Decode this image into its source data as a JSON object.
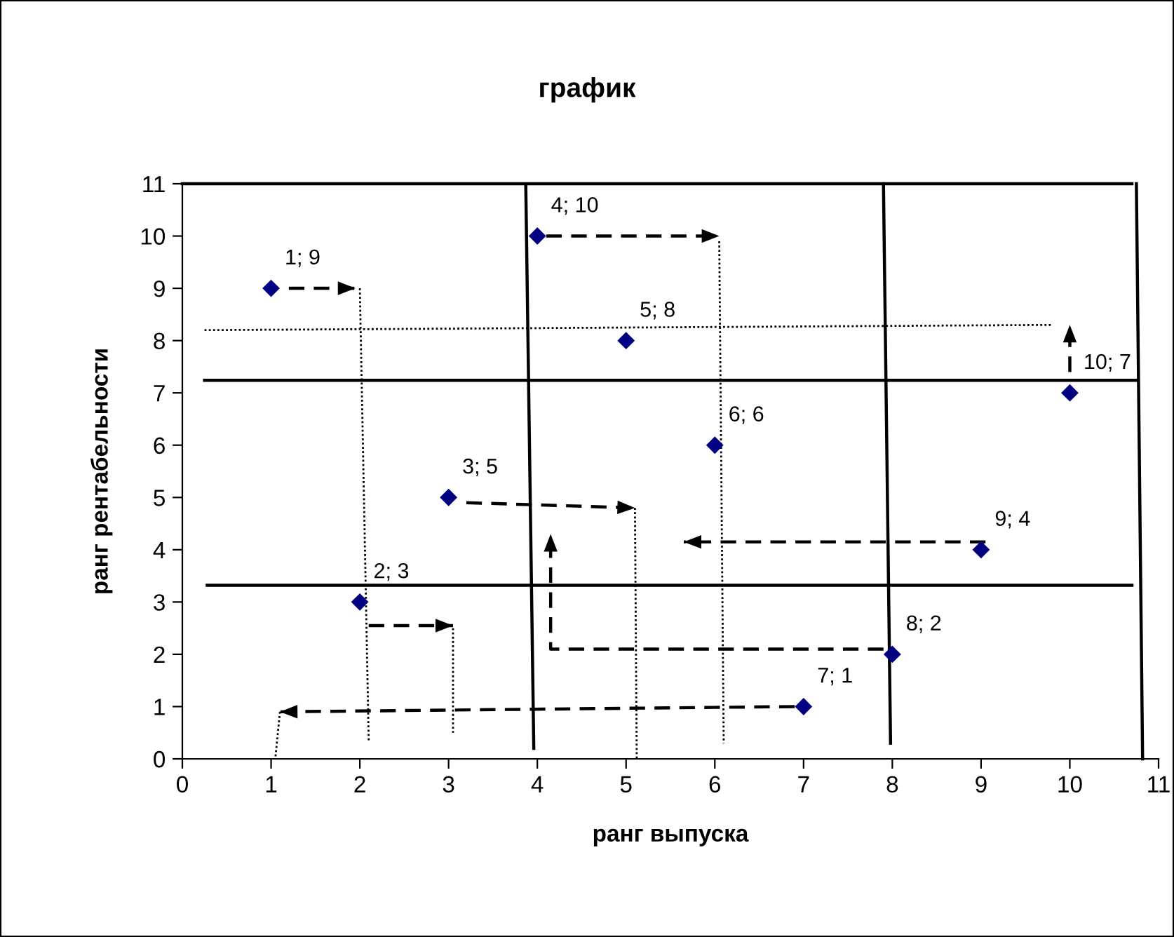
{
  "chart_data": {
    "type": "scatter",
    "title": "график",
    "xlabel": "ранг выпуска",
    "ylabel": "ранг рентабельности",
    "xlim": [
      0,
      11
    ],
    "ylim": [
      0,
      11
    ],
    "xticks": [
      0,
      1,
      2,
      3,
      4,
      5,
      6,
      7,
      8,
      9,
      10,
      11
    ],
    "yticks": [
      0,
      1,
      2,
      3,
      4,
      5,
      6,
      7,
      8,
      9,
      10,
      11
    ],
    "grid": false,
    "legend": false,
    "marker": "diamond",
    "series": [
      {
        "color": "#000080",
        "x": [
          1,
          2,
          3,
          4,
          5,
          6,
          7,
          8,
          9,
          10
        ],
        "values": [
          9,
          3,
          5,
          10,
          8,
          6,
          1,
          2,
          4,
          7
        ],
        "value_labels": [
          "1; 9",
          "2; 3",
          "3; 5",
          "4; 10",
          "5; 8",
          "6; 6",
          "7; 1",
          "8; 2",
          "9; 4",
          "10; 7"
        ]
      },
      {
        "type": "line",
        "color": "#000000",
        "line_style": "solid",
        "marker": "none",
        "x": [
          0,
          10.7
        ],
        "values": [
          11,
          11
        ]
      },
      {
        "type": "line",
        "color": "#000000",
        "line_style": "solid",
        "marker": "none",
        "x": [
          0.25,
          10.75
        ],
        "values": [
          7.24,
          7.24
        ]
      },
      {
        "type": "line",
        "color": "#000000",
        "line_style": "solid",
        "marker": "none",
        "x": [
          0.28,
          10.7
        ],
        "values": [
          3.32,
          3.32
        ]
      },
      {
        "type": "line",
        "color": "#000000",
        "line_style": "solid",
        "marker": "none",
        "x": [
          3.87,
          3.96
        ],
        "values": [
          10.95,
          0.2
        ]
      },
      {
        "type": "line",
        "color": "#000000",
        "line_style": "solid",
        "marker": "none",
        "x": [
          7.9,
          7.98
        ],
        "values": [
          11,
          0.3
        ]
      },
      {
        "type": "line",
        "color": "#000000",
        "line_style": "solid",
        "marker": "none",
        "x": [
          10.75,
          10.82
        ],
        "values": [
          11,
          0
        ]
      },
      {
        "type": "line",
        "color": "#000000",
        "line_style": "dotted",
        "marker": "none",
        "x": [
          0.25,
          9.8
        ],
        "values": [
          8.2,
          8.3
        ]
      },
      {
        "type": "line",
        "color": "#000000",
        "line_style": "dotted",
        "marker": "none",
        "x": [
          2.0,
          2.1
        ],
        "values": [
          9.0,
          0.35
        ]
      },
      {
        "type": "line",
        "color": "#000000",
        "line_style": "dotted",
        "marker": "none",
        "x": [
          3.05,
          3.05
        ],
        "values": [
          2.5,
          0.5
        ]
      },
      {
        "type": "line",
        "color": "#000000",
        "line_style": "dotted",
        "marker": "none",
        "x": [
          5.1,
          5.12
        ],
        "values": [
          4.8,
          0
        ]
      },
      {
        "type": "line",
        "color": "#000000",
        "line_style": "dotted",
        "marker": "none",
        "x": [
          6.05,
          6.1
        ],
        "values": [
          9.9,
          0.3
        ]
      },
      {
        "type": "line",
        "color": "#000000",
        "line_style": "dotted",
        "marker": "none",
        "x": [
          1.1,
          1.05
        ],
        "values": [
          0.9,
          0.05
        ]
      },
      {
        "type": "line",
        "color": "#000000",
        "line_style": "dashed",
        "marker": "none",
        "x": [
          1.2,
          1.95
        ],
        "values": [
          9,
          9
        ]
      },
      {
        "type": "line",
        "color": "#000000",
        "line_style": "dashed",
        "marker": "none",
        "x": [
          4.1,
          6.05
        ],
        "values": [
          10,
          10
        ]
      },
      {
        "type": "line",
        "color": "#000000",
        "line_style": "dashed",
        "marker": "none",
        "x": [
          3.2,
          5.1
        ],
        "values": [
          4.9,
          4.8
        ]
      },
      {
        "type": "line",
        "color": "#000000",
        "line_style": "dashed",
        "marker": "none",
        "x": [
          2.1,
          3.05
        ],
        "values": [
          2.55,
          2.55
        ]
      },
      {
        "type": "line",
        "color": "#000000",
        "line_style": "dashed",
        "marker": "none",
        "x": [
          6.9,
          1.1
        ],
        "values": [
          1.0,
          0.9
        ]
      },
      {
        "type": "line",
        "color": "#000000",
        "line_style": "dashed",
        "marker": "none",
        "x": [
          7.9,
          4.15,
          4.15
        ],
        "values": [
          2.1,
          2.1,
          4.3
        ]
      },
      {
        "type": "line",
        "color": "#000000",
        "line_style": "dashed",
        "marker": "none",
        "x": [
          9.05,
          5.65
        ],
        "values": [
          4.15,
          4.15
        ]
      },
      {
        "type": "line",
        "color": "#000000",
        "line_style": "dashed",
        "marker": "none",
        "x": [
          10,
          10
        ],
        "values": [
          7.4,
          8.3
        ]
      }
    ]
  }
}
